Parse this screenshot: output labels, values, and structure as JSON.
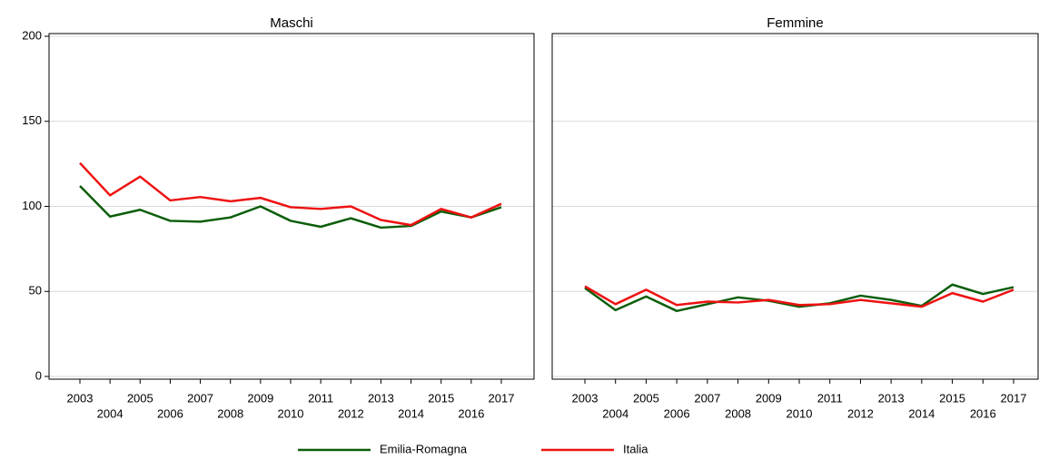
{
  "chart_data": [
    {
      "type": "line",
      "title": "Maschi",
      "x": [
        2003,
        2004,
        2005,
        2006,
        2007,
        2008,
        2009,
        2010,
        2011,
        2012,
        2013,
        2014,
        2015,
        2016,
        2017
      ],
      "xlim": [
        2003,
        2017
      ],
      "xticks": [
        2003,
        2004,
        2005,
        2006,
        2007,
        2008,
        2009,
        2010,
        2011,
        2012,
        2013,
        2014,
        2015,
        2016,
        2017
      ],
      "ylim": [
        0,
        200
      ],
      "yticks": [
        0,
        50,
        100,
        150,
        200
      ],
      "grid": true,
      "series": [
        {
          "name": "Emilia-Romagna",
          "color": "#0b5e0b",
          "values": [
            112,
            94,
            98,
            91.5,
            91,
            93.5,
            100,
            91.5,
            88,
            93,
            87.5,
            88.5,
            97,
            93.5,
            99.5
          ]
        },
        {
          "name": "Italia",
          "color": "#ee1111",
          "values": [
            125.5,
            106.5,
            117.5,
            103.5,
            105.5,
            103,
            105,
            99.5,
            98.5,
            100,
            92,
            89,
            98.5,
            93.5,
            101.5
          ]
        }
      ]
    },
    {
      "type": "line",
      "title": "Femmine",
      "x": [
        2003,
        2004,
        2005,
        2006,
        2007,
        2008,
        2009,
        2010,
        2011,
        2012,
        2013,
        2014,
        2015,
        2016,
        2017
      ],
      "xlim": [
        2003,
        2017
      ],
      "xticks": [
        2003,
        2004,
        2005,
        2006,
        2007,
        2008,
        2009,
        2010,
        2011,
        2012,
        2013,
        2014,
        2015,
        2016,
        2017
      ],
      "ylim": [
        0,
        200
      ],
      "yticks": [
        0,
        50,
        100,
        150,
        200
      ],
      "grid": true,
      "series": [
        {
          "name": "Emilia-Romagna",
          "color": "#0b5e0b",
          "values": [
            52,
            39,
            47,
            38.5,
            42.5,
            46.5,
            44.5,
            41,
            43,
            47.5,
            45,
            41.5,
            54,
            48.5,
            52.5
          ]
        },
        {
          "name": "Italia",
          "color": "#ee1111",
          "values": [
            53,
            42.5,
            51,
            42,
            44,
            43.5,
            45,
            42,
            42.5,
            45,
            43,
            41,
            49,
            44,
            51
          ]
        }
      ]
    }
  ]
}
